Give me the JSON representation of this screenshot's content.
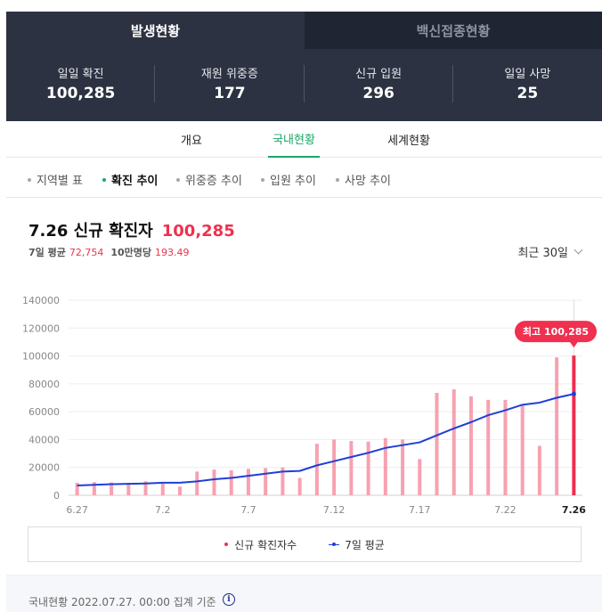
{
  "top_tabs": [
    {
      "label": "발생현황",
      "active": true
    },
    {
      "label": "백신접종현황",
      "active": false
    }
  ],
  "stats": [
    {
      "label": "일일 확진",
      "value": "100,285"
    },
    {
      "label": "재원 위중증",
      "value": "177"
    },
    {
      "label": "신규 입원",
      "value": "296"
    },
    {
      "label": "일일 사망",
      "value": "25"
    }
  ],
  "sub_tabs": [
    {
      "label": "개요",
      "active": false
    },
    {
      "label": "국내현황",
      "active": true
    },
    {
      "label": "세계현황",
      "active": false
    }
  ],
  "filters": [
    {
      "label": "지역별 표",
      "active": false
    },
    {
      "label": "확진 추이",
      "active": true
    },
    {
      "label": "위중증 추이",
      "active": false
    },
    {
      "label": "입원 추이",
      "active": false
    },
    {
      "label": "사망 추이",
      "active": false
    }
  ],
  "headline": {
    "date_label": "7.26 신규 확진자",
    "value": "100,285"
  },
  "sub_stats": {
    "avg_label": "7일 평균",
    "avg_value": "72,754",
    "per_label": "10만명당",
    "per_value": "193.49"
  },
  "range_select": {
    "label": "최근 30일"
  },
  "chart_data": {
    "type": "bar",
    "title": "",
    "xlabel": "",
    "ylabel": "",
    "ylim": [
      0,
      140000
    ],
    "y_ticks": [
      0,
      20000,
      40000,
      60000,
      80000,
      100000,
      120000,
      140000
    ],
    "x_tick_labels": [
      {
        "index": 0,
        "label": "6.27"
      },
      {
        "index": 5,
        "label": "7.2"
      },
      {
        "index": 10,
        "label": "7.7"
      },
      {
        "index": 15,
        "label": "7.12"
      },
      {
        "index": 20,
        "label": "7.17"
      },
      {
        "index": 25,
        "label": "7.22"
      },
      {
        "index": 29,
        "label": "7.26"
      }
    ],
    "categories": [
      "6.27",
      "6.28",
      "6.29",
      "6.30",
      "7.1",
      "7.2",
      "7.3",
      "7.4",
      "7.5",
      "7.6",
      "7.7",
      "7.8",
      "7.9",
      "7.10",
      "7.11",
      "7.12",
      "7.13",
      "7.14",
      "7.15",
      "7.16",
      "7.17",
      "7.18",
      "7.19",
      "7.20",
      "7.21",
      "7.22",
      "7.23",
      "7.24",
      "7.25",
      "7.26"
    ],
    "series": [
      {
        "name": "신규 확진자수",
        "type": "bar",
        "color": "#f7a1b1",
        "highlight_color": "#ef2d4f",
        "values": [
          9000,
          9500,
          9200,
          9000,
          10000,
          9500,
          6200,
          17000,
          18500,
          18000,
          19000,
          19500,
          20000,
          12500,
          37000,
          40000,
          39000,
          38500,
          41000,
          40000,
          26000,
          73500,
          76000,
          71000,
          68500,
          68500,
          65000,
          35500,
          99000,
          100285
        ]
      },
      {
        "name": "7일 평균",
        "type": "line",
        "color": "#1f3fd6",
        "values": [
          7000,
          7500,
          8000,
          8200,
          8500,
          9000,
          9000,
          10000,
          11500,
          12500,
          14000,
          15500,
          17000,
          17500,
          21500,
          24500,
          27500,
          30500,
          34000,
          36000,
          38000,
          43000,
          48000,
          52500,
          57500,
          61000,
          65000,
          66500,
          70000,
          72754
        ]
      }
    ],
    "max_annotation": {
      "index": 29,
      "label": "최고 100,285"
    },
    "grid": true,
    "legend_position": "bottom"
  },
  "legend": {
    "bar_label": "신규 확진자수",
    "line_label": "7일 평균"
  },
  "footer": {
    "text": "국내현황 2022.07.27. 00:00 집계 기준"
  }
}
